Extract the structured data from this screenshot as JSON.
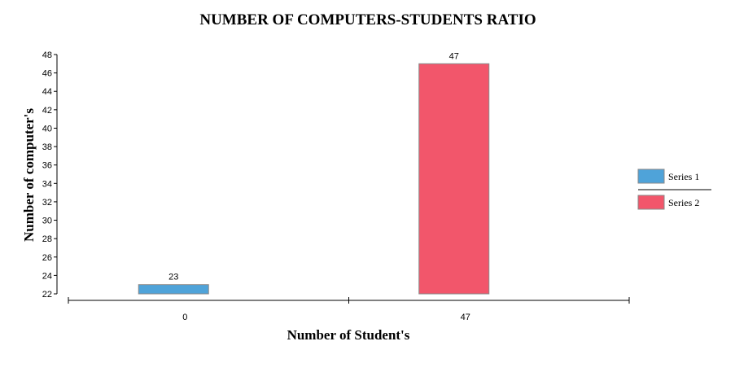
{
  "chart_data": {
    "type": "bar",
    "title": "NUMBER OF COMPUTERS-STUDENTS RATIO",
    "xlabel": "Number of Student's",
    "ylabel": "Number of computer's",
    "categories": [
      "0",
      "47"
    ],
    "series": [
      {
        "name": "Series 1",
        "values": [
          23,
          null
        ],
        "color": "#4fa3d9"
      },
      {
        "name": "Series 2",
        "values": [
          null,
          47
        ],
        "color": "#f2566b"
      }
    ],
    "ylim": [
      22,
      48
    ],
    "yticks": [
      22,
      24,
      26,
      28,
      30,
      32,
      34,
      36,
      38,
      40,
      42,
      44,
      46,
      48
    ],
    "grid": false,
    "legend": "right"
  }
}
